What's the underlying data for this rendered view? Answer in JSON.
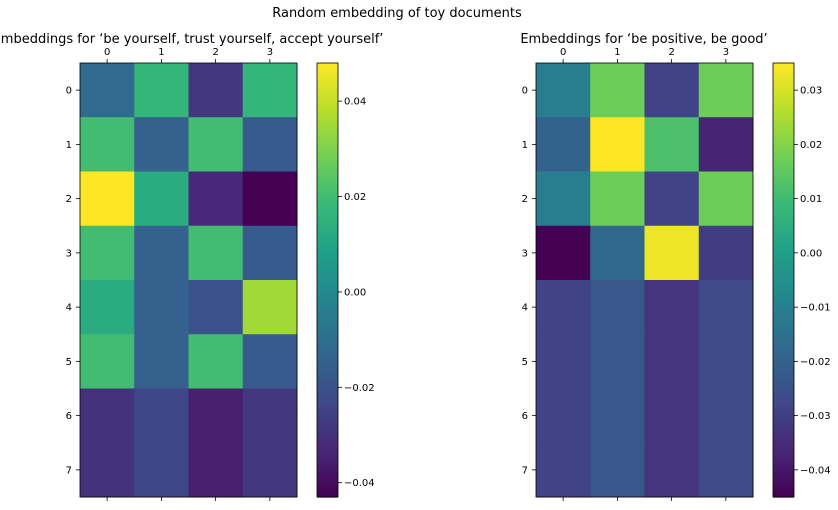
{
  "figure_title": "Random embedding of toy documents",
  "chart_data": [
    {
      "type": "heatmap",
      "title": "Embeddings for ‘be yourself, trust yourself, accept yourself’",
      "colormap": "viridis",
      "x_ticks": [
        "0",
        "1",
        "2",
        "3"
      ],
      "y_ticks": [
        "0",
        "1",
        "2",
        "3",
        "4",
        "5",
        "6",
        "7"
      ],
      "vmin": -0.043,
      "vmax": 0.048,
      "colorbar_ticks": [
        "0.04",
        "0.02",
        "0.00",
        "−0.02",
        "−0.04"
      ],
      "colorbar_tick_values": [
        0.04,
        0.02,
        0.0,
        -0.02,
        -0.04
      ],
      "values": [
        [
          -0.012,
          0.017,
          -0.028,
          0.017
        ],
        [
          0.02,
          -0.015,
          0.02,
          -0.017
        ],
        [
          0.048,
          0.013,
          -0.033,
          -0.043
        ],
        [
          0.02,
          -0.015,
          0.02,
          -0.017
        ],
        [
          0.013,
          -0.015,
          -0.02,
          0.035
        ],
        [
          0.02,
          -0.015,
          0.02,
          -0.017
        ],
        [
          -0.03,
          -0.024,
          -0.035,
          -0.028
        ],
        [
          -0.03,
          -0.024,
          -0.035,
          -0.028
        ]
      ]
    },
    {
      "type": "heatmap",
      "title": "Embeddings for ‘be positive, be good’",
      "colormap": "viridis",
      "x_ticks": [
        "0",
        "1",
        "2",
        "3"
      ],
      "y_ticks": [
        "0",
        "1",
        "2",
        "3",
        "4",
        "5",
        "6",
        "7"
      ],
      "vmin": -0.045,
      "vmax": 0.035,
      "colorbar_ticks": [
        "0.03",
        "0.02",
        "0.01",
        "0.00",
        "−0.01",
        "−0.02",
        "−0.03",
        "−0.04"
      ],
      "colorbar_tick_values": [
        0.03,
        0.02,
        0.01,
        0.0,
        -0.01,
        -0.02,
        -0.03,
        -0.04
      ],
      "values": [
        [
          -0.011,
          0.017,
          -0.029,
          0.017
        ],
        [
          -0.02,
          0.035,
          0.012,
          -0.037
        ],
        [
          -0.011,
          0.017,
          -0.029,
          0.017
        ],
        [
          -0.045,
          -0.018,
          0.033,
          -0.031
        ],
        [
          -0.029,
          -0.023,
          -0.033,
          -0.027
        ],
        [
          -0.029,
          -0.023,
          -0.033,
          -0.027
        ],
        [
          -0.029,
          -0.023,
          -0.033,
          -0.027
        ],
        [
          -0.029,
          -0.023,
          -0.033,
          -0.027
        ]
      ]
    }
  ]
}
